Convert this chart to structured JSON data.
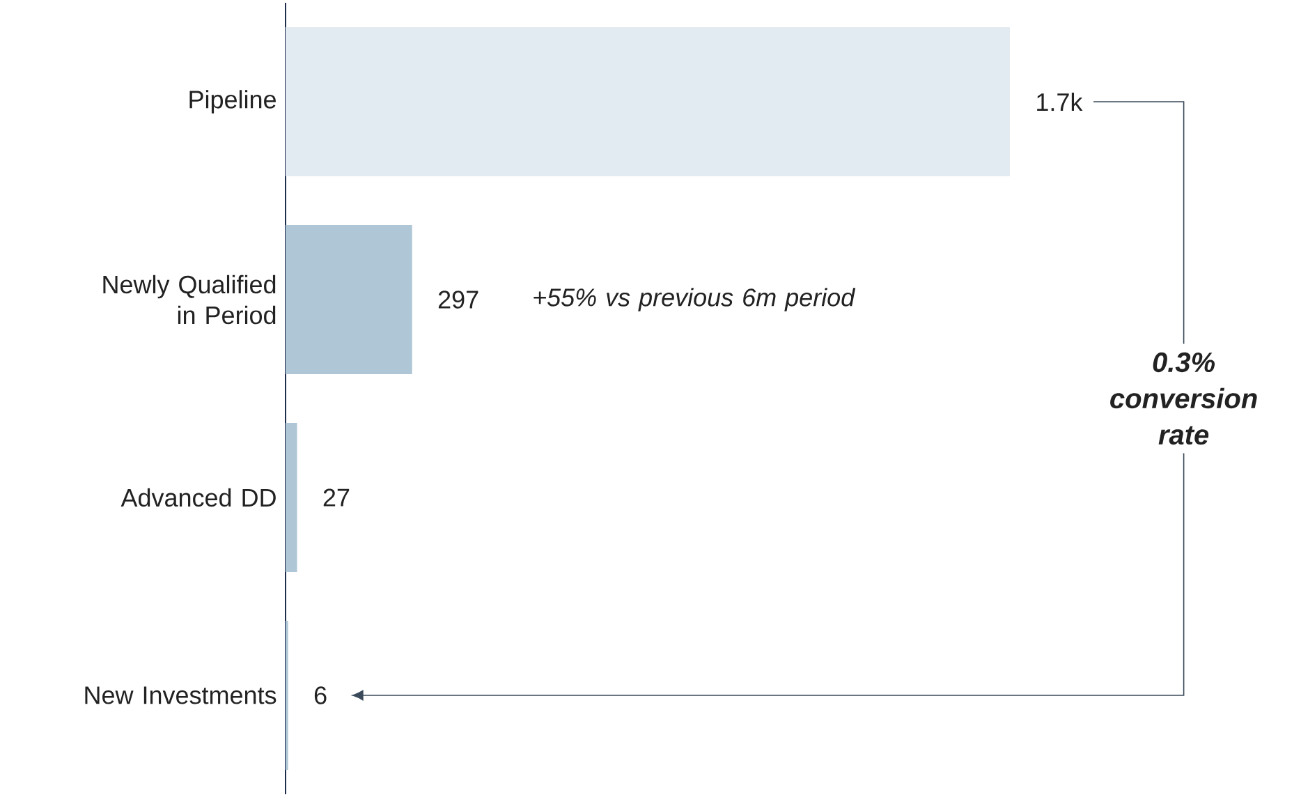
{
  "chart_data": {
    "type": "bar",
    "orientation": "horizontal",
    "categories": [
      "Pipeline",
      "Newly Qualified in Period",
      "Advanced DD",
      "New Investments"
    ],
    "values": [
      1700,
      297,
      27,
      6
    ],
    "colors": [
      "#e3ebf2",
      "#aec6d5",
      "#aec6d5",
      "#aec6d5"
    ],
    "value_labels": [
      "1.7k",
      "297",
      "27",
      "6"
    ],
    "xlim": [
      0,
      1700
    ],
    "tick_labels": "y",
    "annotations": [
      "+55% vs previous 6m period",
      "0.3% conversion rate"
    ]
  }
}
